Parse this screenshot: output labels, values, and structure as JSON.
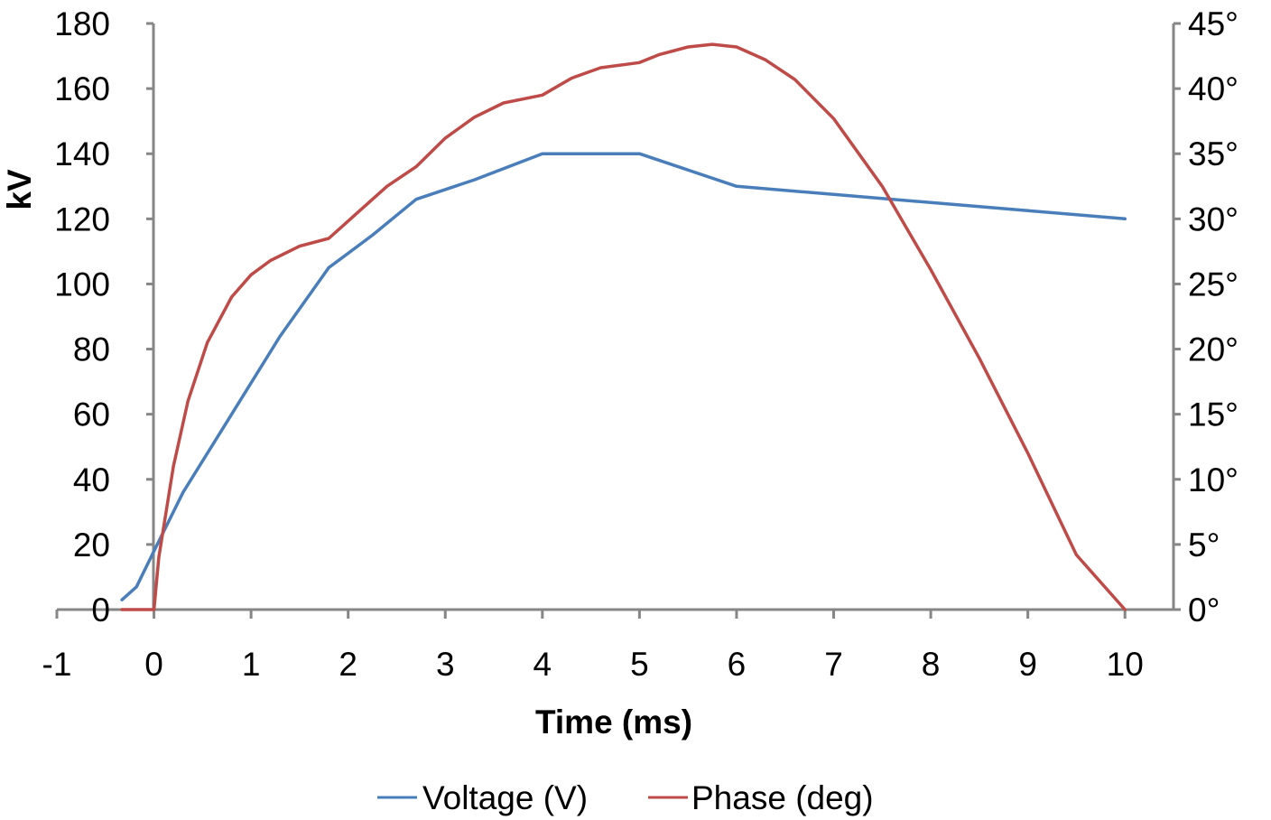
{
  "chart_data": {
    "type": "line",
    "title": "",
    "xlabel": "Time (ms)",
    "ylabel": "kV",
    "y2label": "",
    "xlim": [
      -1,
      10.5
    ],
    "ylim": [
      0,
      180
    ],
    "y2lim": [
      0,
      45
    ],
    "x_ticks": [
      "-1",
      "0",
      "1",
      "2",
      "3",
      "4",
      "5",
      "6",
      "7",
      "8",
      "9",
      "10"
    ],
    "y_ticks": [
      "0",
      "20",
      "40",
      "60",
      "80",
      "100",
      "120",
      "140",
      "160",
      "180"
    ],
    "y2_ticks": [
      "0°",
      "5°",
      "10°",
      "15°",
      "20°",
      "25°",
      "30°",
      "35°",
      "40°",
      "45°"
    ],
    "grid": false,
    "legend_position": "bottom",
    "colors": {
      "voltage": "#4a7ebb",
      "phase": "#be4b48",
      "axis": "#868686"
    },
    "series": [
      {
        "name": "Voltage (V)",
        "axis": "left",
        "color": "#4a7ebb",
        "x": [
          -0.33,
          -0.18,
          0.0,
          0.3,
          0.8,
          1.3,
          1.8,
          2.25,
          2.7,
          3.3,
          4.0,
          5.0,
          6.0,
          7.0,
          8.0,
          9.0,
          10.0
        ],
        "y": [
          3,
          7,
          18,
          36,
          60,
          84,
          105,
          115,
          126,
          132,
          140,
          140,
          130,
          127.5,
          125,
          122.5,
          120
        ]
      },
      {
        "name": "Phase (deg)",
        "axis": "right",
        "color": "#be4b48",
        "x": [
          -0.33,
          0.0,
          0.05,
          0.2,
          0.35,
          0.55,
          0.8,
          1.0,
          1.2,
          1.5,
          1.8,
          2.1,
          2.4,
          2.7,
          3.0,
          3.3,
          3.6,
          4.0,
          4.3,
          4.6,
          5.0,
          5.2,
          5.5,
          5.75,
          6.0,
          6.3,
          6.6,
          7.0,
          7.5,
          8.0,
          8.5,
          9.0,
          9.5,
          10.0
        ],
        "y": [
          0,
          0,
          4,
          11,
          16,
          20.5,
          24,
          25.7,
          26.8,
          27.9,
          28.5,
          30.5,
          32.5,
          34,
          36.2,
          37.8,
          38.9,
          39.5,
          40.8,
          41.6,
          42,
          42.6,
          43.2,
          43.4,
          43.2,
          42.2,
          40.7,
          37.7,
          32.5,
          26.1,
          19.3,
          12.0,
          4.2,
          0
        ]
      }
    ]
  }
}
